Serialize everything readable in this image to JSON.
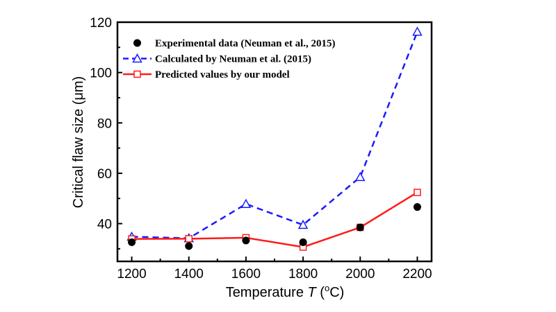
{
  "chart_data": {
    "type": "line",
    "title": "",
    "xlabel": "Temperature T (oC)",
    "xlabel_parts": {
      "prefix": "Temperature ",
      "italic": "T",
      "open": " (",
      "sup": "o",
      "unit": "C)"
    },
    "ylabel": "Critical flaw size (μm)",
    "xlim": [
      1150,
      2250
    ],
    "ylim": [
      25,
      120
    ],
    "xticks": [
      1200,
      1400,
      1600,
      1800,
      2000,
      2200
    ],
    "yticks": [
      40,
      60,
      80,
      100,
      120
    ],
    "grid": false,
    "legend_position": "top-left",
    "x": [
      1200,
      1400,
      1600,
      1800,
      2000,
      2200
    ],
    "series": [
      {
        "name": "Experimental data (Neuman et al., 2015)",
        "values": [
          32.6,
          31.1,
          33.3,
          32.6,
          38.5,
          46.6
        ],
        "color": "#000000",
        "marker": "filled-circle",
        "line": "none"
      },
      {
        "name": "Calculated by Neuman et al. (2015)",
        "values": [
          34.8,
          34.2,
          47.8,
          39.5,
          58.5,
          116.2
        ],
        "color": "#1a1aff",
        "marker": "open-triangle",
        "line": "dashed"
      },
      {
        "name": "Predicted values by our model",
        "values": [
          33.9,
          34.0,
          34.4,
          30.7,
          38.5,
          52.4
        ],
        "color": "#ff1a1a",
        "marker": "open-square",
        "line": "solid"
      }
    ]
  }
}
